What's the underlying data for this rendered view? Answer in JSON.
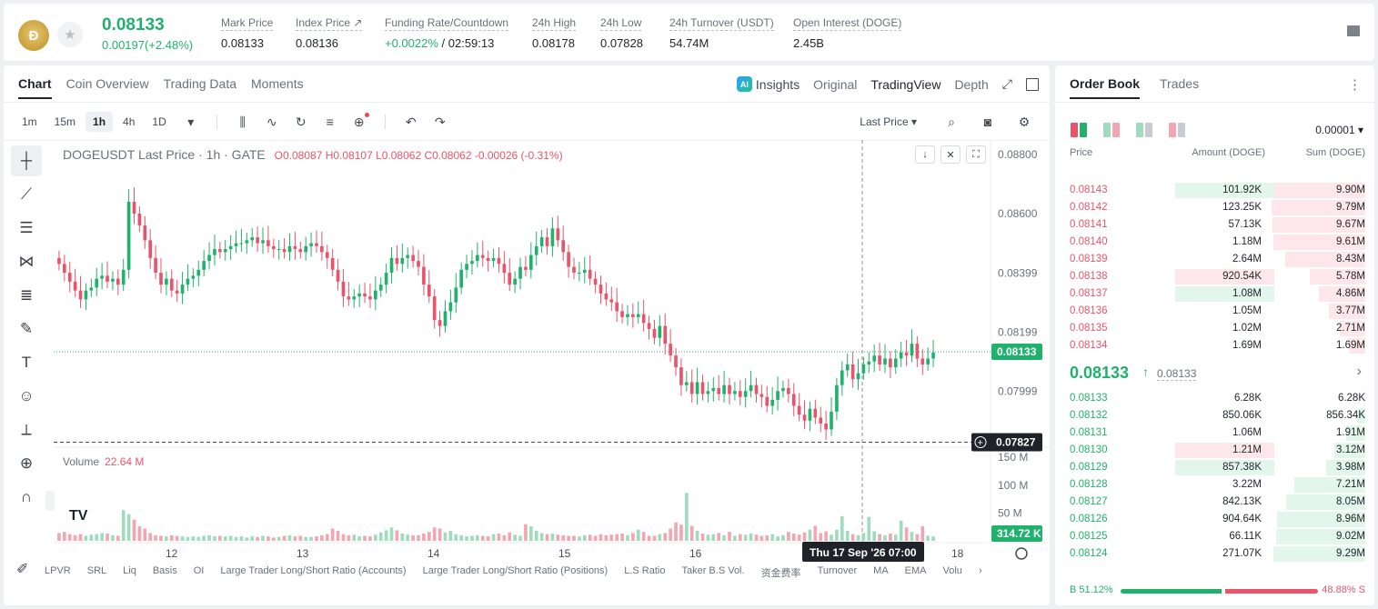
{
  "header": {
    "coin_logo_text": "Ð",
    "last_price": "0.08133",
    "price_change": "0.00197(+2.48%)",
    "stats": [
      {
        "label": "Mark Price",
        "value": "0.08133"
      },
      {
        "label": "Index Price ↗",
        "value": "0.08136"
      },
      {
        "label": "Funding Rate/Countdown",
        "value_pos": "+0.0022%",
        "value": " / 02:59:13"
      },
      {
        "label": "24h High",
        "value": "0.08178"
      },
      {
        "label": "24h Low",
        "value": "0.07828"
      },
      {
        "label": "24h Turnover (USDT)",
        "value": "54.74M"
      },
      {
        "label": "Open Interest (DOGE)",
        "value": "2.45B"
      }
    ]
  },
  "chart_tabs": [
    "Chart",
    "Coin Overview",
    "Trading Data",
    "Moments"
  ],
  "view_tabs": {
    "ai_badge": "AI",
    "insights": "Insights",
    "original": "Original",
    "tradingview": "TradingView",
    "depth": "Depth"
  },
  "toolbar": {
    "timeframes": [
      "1m",
      "15m",
      "1h",
      "4h",
      "1D"
    ],
    "active_timeframe": "1h",
    "last_price_select": "Last Price"
  },
  "legend": {
    "symbol": "DOGEUSDT Last Price · 1h · GATE",
    "ohlc": "O0.08087 H0.08107 L0.08062 C0.08062 -0.00026 (-0.31%)"
  },
  "volume_legend": {
    "label": "Volume",
    "value": "22.64 M"
  },
  "price_axis": [
    "0.08800",
    "0.08600",
    "0.08399",
    "0.08199",
    "0.07999"
  ],
  "price_labels": {
    "current": "0.08133",
    "crosshair": "0.07827"
  },
  "volume_axis": [
    "150 M",
    "100 M",
    "50 M"
  ],
  "volume_label": "314.72 K",
  "time_axis": [
    "12",
    "13",
    "14",
    "15",
    "16",
    "18"
  ],
  "crosshair_time": "Thu 17 Sep '26   07:00",
  "indicators": [
    "LPVR",
    "SRL",
    "Liq",
    "Basis",
    "OI",
    "Large Trader Long/Short Ratio (Accounts)",
    "Large Trader Long/Short Ratio (Positions)",
    "L.S Ratio",
    "Taker B.S Vol.",
    "资金费率",
    "Turnover",
    "MA",
    "EMA",
    "Volu"
  ],
  "chart_data": {
    "type": "candlestick",
    "symbol": "DOGEUSDT",
    "interval": "1h",
    "ylim": [
      0.0781,
      0.0884
    ],
    "last_price": 0.08133,
    "crosshair_price": 0.07827,
    "closes": [
      0.0843,
      0.084,
      0.0837,
      0.0834,
      0.0831,
      0.0834,
      0.0835,
      0.0838,
      0.0839,
      0.0837,
      0.0838,
      0.0836,
      0.0841,
      0.0864,
      0.086,
      0.0856,
      0.0851,
      0.0845,
      0.084,
      0.0836,
      0.0838,
      0.0834,
      0.0833,
      0.0836,
      0.0838,
      0.0839,
      0.0841,
      0.0844,
      0.0846,
      0.0848,
      0.0847,
      0.0848,
      0.0849,
      0.085,
      0.085,
      0.0851,
      0.0852,
      0.085,
      0.0851,
      0.0849,
      0.0848,
      0.0848,
      0.0847,
      0.0849,
      0.0848,
      0.0847,
      0.0849,
      0.085,
      0.0849,
      0.0847,
      0.0845,
      0.0841,
      0.0837,
      0.0832,
      0.0831,
      0.0832,
      0.0833,
      0.0832,
      0.0831,
      0.0834,
      0.0836,
      0.084,
      0.0845,
      0.0843,
      0.0845,
      0.0846,
      0.0844,
      0.0842,
      0.0836,
      0.0832,
      0.0824,
      0.0822,
      0.0827,
      0.083,
      0.0835,
      0.0841,
      0.0843,
      0.0844,
      0.0846,
      0.0845,
      0.0844,
      0.0845,
      0.0843,
      0.084,
      0.0836,
      0.0838,
      0.0842,
      0.0841,
      0.0846,
      0.0849,
      0.0852,
      0.0849,
      0.0855,
      0.0851,
      0.0847,
      0.0842,
      0.084,
      0.084,
      0.0841,
      0.0838,
      0.0836,
      0.0833,
      0.0831,
      0.083,
      0.0827,
      0.0825,
      0.0826,
      0.0825,
      0.0826,
      0.0823,
      0.0821,
      0.0818,
      0.0822,
      0.0816,
      0.0812,
      0.0808,
      0.0802,
      0.0803,
      0.0799,
      0.0803,
      0.0799,
      0.08,
      0.0801,
      0.0799,
      0.0802,
      0.0799,
      0.08,
      0.0798,
      0.08,
      0.0802,
      0.0799,
      0.0798,
      0.0795,
      0.0797,
      0.08,
      0.0801,
      0.0799,
      0.0795,
      0.0792,
      0.079,
      0.0794,
      0.0791,
      0.0789,
      0.0787,
      0.0793,
      0.0802,
      0.0807,
      0.0809,
      0.0804,
      0.0806,
      0.0809,
      0.081,
      0.0812,
      0.0809,
      0.0811,
      0.0808,
      0.0811,
      0.0813,
      0.0812,
      0.0816,
      0.0811,
      0.0809,
      0.0811,
      0.0813
    ],
    "volumes": [
      14,
      16,
      12,
      10,
      12,
      9,
      11,
      12,
      14,
      13,
      10,
      9,
      55,
      48,
      38,
      26,
      22,
      14,
      10,
      9,
      8,
      10,
      9,
      8,
      7,
      8,
      7,
      9,
      10,
      8,
      9,
      8,
      9,
      7,
      8,
      6,
      8,
      7,
      9,
      8,
      6,
      7,
      9,
      10,
      8,
      9,
      7,
      7,
      8,
      10,
      12,
      22,
      18,
      12,
      10,
      11,
      8,
      9,
      8,
      11,
      15,
      19,
      24,
      19,
      13,
      11,
      10,
      10,
      13,
      16,
      24,
      22,
      15,
      18,
      12,
      10,
      8,
      9,
      10,
      9,
      8,
      12,
      13,
      10,
      15,
      11,
      9,
      30,
      26,
      18,
      14,
      12,
      13,
      11,
      10,
      9,
      9,
      8,
      10,
      11,
      9,
      12,
      10,
      11,
      12,
      13,
      10,
      14,
      20,
      16,
      9,
      9,
      12,
      14,
      22,
      33,
      29,
      86,
      27,
      18,
      13,
      11,
      12,
      14,
      10,
      16,
      9,
      12,
      11,
      13,
      11,
      9,
      10,
      12,
      8,
      10,
      16,
      13,
      11,
      15,
      20,
      27,
      14,
      17,
      11,
      20,
      44,
      18,
      12,
      10,
      14,
      43,
      17,
      12,
      10,
      13,
      11,
      36,
      24,
      16,
      12,
      26,
      9
    ]
  },
  "order_book": {
    "tabs": [
      "Order Book",
      "Trades"
    ],
    "precision": "0.00001",
    "headers": {
      "price": "Price",
      "amount": "Amount (DOGE)",
      "sum": "Sum (DOGE)"
    },
    "asks": [
      {
        "price": "0.08143",
        "amount": "101.92K",
        "sum": "9.90M",
        "amt_frac": 0.72,
        "sum_frac": 0.99,
        "hl": "green"
      },
      {
        "price": "0.08142",
        "amount": "123.25K",
        "sum": "9.79M",
        "amt_frac": 0,
        "sum_frac": 0.98,
        "hl": ""
      },
      {
        "price": "0.08141",
        "amount": "57.13K",
        "sum": "9.67M",
        "amt_frac": 0,
        "sum_frac": 0.97,
        "hl": ""
      },
      {
        "price": "0.08140",
        "amount": "1.18M",
        "sum": "9.61M",
        "amt_frac": 0,
        "sum_frac": 0.96,
        "hl": ""
      },
      {
        "price": "0.08139",
        "amount": "2.64M",
        "sum": "8.43M",
        "amt_frac": 0,
        "sum_frac": 0.84,
        "hl": ""
      },
      {
        "price": "0.08138",
        "amount": "920.54K",
        "sum": "5.78M",
        "amt_frac": 0.72,
        "sum_frac": 0.58,
        "hl": "red"
      },
      {
        "price": "0.08137",
        "amount": "1.08M",
        "sum": "4.86M",
        "amt_frac": 0.72,
        "sum_frac": 0.49,
        "hl": "green"
      },
      {
        "price": "0.08136",
        "amount": "1.05M",
        "sum": "3.77M",
        "amt_frac": 0,
        "sum_frac": 0.38,
        "hl": ""
      },
      {
        "price": "0.08135",
        "amount": "1.02M",
        "sum": "2.71M",
        "amt_frac": 0,
        "sum_frac": 0.27,
        "hl": ""
      },
      {
        "price": "0.08134",
        "amount": "1.69M",
        "sum": "1.69M",
        "amt_frac": 0,
        "sum_frac": 0.17,
        "hl": ""
      }
    ],
    "mid_price": "0.08133",
    "mid_arrow": "↑",
    "mark_price": "0.08133",
    "bids": [
      {
        "price": "0.08133",
        "amount": "6.28K",
        "sum": "6.28K",
        "amt_frac": 0,
        "sum_frac": 0.01,
        "hl": ""
      },
      {
        "price": "0.08132",
        "amount": "850.06K",
        "sum": "856.34K",
        "amt_frac": 0,
        "sum_frac": 0.09,
        "hl": ""
      },
      {
        "price": "0.08131",
        "amount": "1.06M",
        "sum": "1.91M",
        "amt_frac": 0,
        "sum_frac": 0.2,
        "hl": ""
      },
      {
        "price": "0.08130",
        "amount": "1.21M",
        "sum": "3.12M",
        "amt_frac": 0.72,
        "sum_frac": 0.32,
        "hl": "red"
      },
      {
        "price": "0.08129",
        "amount": "857.38K",
        "sum": "3.98M",
        "amt_frac": 0.72,
        "sum_frac": 0.41,
        "hl": "green"
      },
      {
        "price": "0.08128",
        "amount": "3.22M",
        "sum": "7.21M",
        "amt_frac": 0,
        "sum_frac": 0.74,
        "hl": ""
      },
      {
        "price": "0.08127",
        "amount": "842.13K",
        "sum": "8.05M",
        "amt_frac": 0,
        "sum_frac": 0.83,
        "hl": ""
      },
      {
        "price": "0.08126",
        "amount": "904.64K",
        "sum": "8.96M",
        "amt_frac": 0,
        "sum_frac": 0.92,
        "hl": ""
      },
      {
        "price": "0.08125",
        "amount": "66.11K",
        "sum": "9.02M",
        "amt_frac": 0,
        "sum_frac": 0.93,
        "hl": ""
      },
      {
        "price": "0.08124",
        "amount": "271.07K",
        "sum": "9.29M",
        "amt_frac": 0,
        "sum_frac": 0.96,
        "hl": ""
      }
    ],
    "buy_ratio_label": "B 51.12%",
    "sell_ratio_label": "48.88% S",
    "buy_ratio": 0.5112
  },
  "colors": {
    "up": "#20b26c",
    "down": "#e9546b",
    "up_soft": "#9fdcbf",
    "down_soft": "#f1a6b2"
  }
}
